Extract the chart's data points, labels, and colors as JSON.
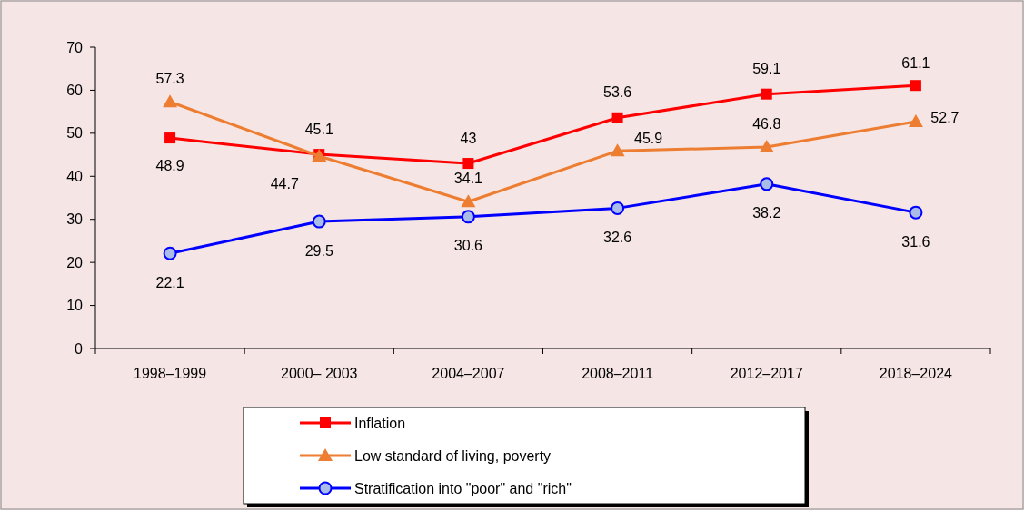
{
  "chart_data": {
    "type": "line",
    "categories": [
      "1998–1999",
      "2000– 2003",
      "2004–2007",
      "2008–2011",
      "2012–2017",
      "2018–2024"
    ],
    "series": [
      {
        "name": "Inflation",
        "color": "#ff0000",
        "marker": "square",
        "values": [
          48.9,
          45.1,
          43,
          53.6,
          59.1,
          61.1
        ]
      },
      {
        "name": "Low standard of living, poverty",
        "color": "#ed7d31",
        "marker": "triangle",
        "values": [
          57.3,
          44.7,
          34.1,
          45.9,
          46.8,
          52.7
        ]
      },
      {
        "name": "Stratification into \"poor\" and \"rich\"",
        "color": "#0000ff",
        "marker": "circle",
        "values": [
          22.1,
          29.5,
          30.6,
          32.6,
          38.2,
          31.6
        ]
      }
    ],
    "ylim": [
      0,
      70
    ],
    "yticks": [
      0,
      10,
      20,
      30,
      40,
      50,
      60,
      70
    ],
    "grid": false,
    "data_labels": true,
    "legend": "bottom",
    "line_style": "solid"
  }
}
